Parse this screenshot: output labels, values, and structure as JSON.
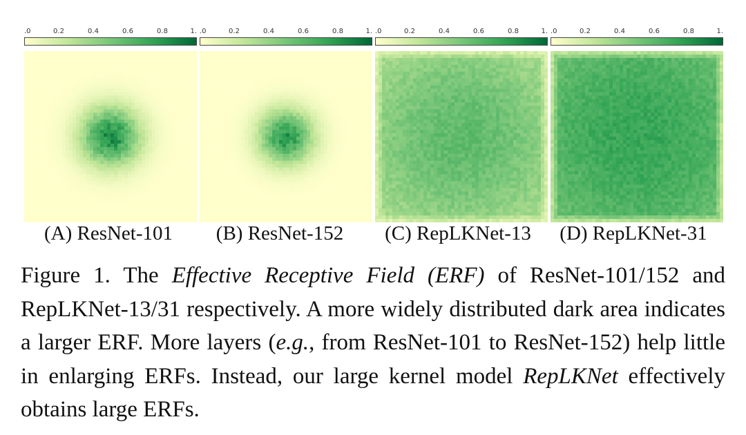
{
  "colorbar": {
    "tick_labels": [
      ".0",
      "0.2",
      "0.4",
      "0.6",
      "0.8",
      "1."
    ],
    "tick_values": [
      0.0,
      0.2,
      0.4,
      0.6,
      0.8,
      1.0
    ],
    "colors": [
      "#ffffcc",
      "#c2e699",
      "#78c679",
      "#31a354",
      "#006837"
    ]
  },
  "panels": [
    {
      "label": "(A) ResNet-101",
      "intensity": 0.85,
      "spread": 0.12,
      "background": 0.0
    },
    {
      "label": "(B) ResNet-152",
      "intensity": 0.8,
      "spread": 0.11,
      "background": 0.0
    },
    {
      "label": "(C) RepLKNet-13",
      "intensity": 0.75,
      "spread": 0.45,
      "background": 0.35
    },
    {
      "label": "(D) RepLKNet-31",
      "intensity": 0.8,
      "spread": 0.6,
      "background": 0.55
    }
  ],
  "caption": {
    "prefix": "Figure 1. The ",
    "term": "Effective Receptive Field (ERF)",
    "part2": " of ResNet-101/152 and RepLKNet-13/31 respectively.  A more widely distributed dark area indicates a larger ERF. More layers (",
    "eg": "e.g.",
    "part3": ", from ResNet-101 to ResNet-152) help little in enlarging ERFs.  Instead, our large kernel model ",
    "model": "RepLKNet",
    "part4": " effectively obtains large ERFs."
  }
}
